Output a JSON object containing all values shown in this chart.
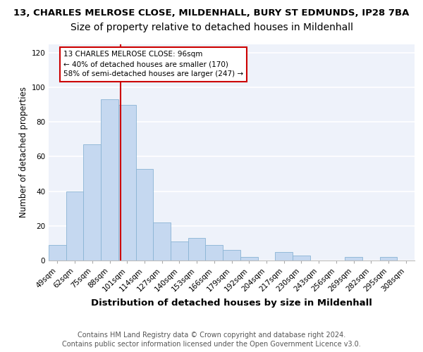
{
  "title1": "13, CHARLES MELROSE CLOSE, MILDENHALL, BURY ST EDMUNDS, IP28 7BA",
  "title2": "Size of property relative to detached houses in Mildenhall",
  "xlabel": "Distribution of detached houses by size in Mildenhall",
  "ylabel": "Number of detached properties",
  "categories": [
    "49sqm",
    "62sqm",
    "75sqm",
    "88sqm",
    "101sqm",
    "114sqm",
    "127sqm",
    "140sqm",
    "153sqm",
    "166sqm",
    "179sqm",
    "192sqm",
    "204sqm",
    "217sqm",
    "230sqm",
    "243sqm",
    "256sqm",
    "269sqm",
    "282sqm",
    "295sqm",
    "308sqm"
  ],
  "values": [
    9,
    40,
    67,
    93,
    90,
    53,
    22,
    11,
    13,
    9,
    6,
    2,
    0,
    5,
    3,
    0,
    0,
    2,
    0,
    2,
    0
  ],
  "bar_color": "#c5d8f0",
  "bar_edge_color": "#8ab4d4",
  "annotation_text": "13 CHARLES MELROSE CLOSE: 96sqm\n← 40% of detached houses are smaller (170)\n58% of semi-detached houses are larger (247) →",
  "annotation_box_facecolor": "#ffffff",
  "annotation_box_edgecolor": "#cc0000",
  "vline_color": "#cc0000",
  "ylim": [
    0,
    125
  ],
  "yticks": [
    0,
    20,
    40,
    60,
    80,
    100,
    120
  ],
  "footer1": "Contains HM Land Registry data © Crown copyright and database right 2024.",
  "footer2": "Contains public sector information licensed under the Open Government Licence v3.0.",
  "background_color": "#eef2fa",
  "grid_color": "#ffffff",
  "title1_fontsize": 9.5,
  "title2_fontsize": 10,
  "xlabel_fontsize": 9.5,
  "ylabel_fontsize": 8.5,
  "tick_fontsize": 7.5,
  "annotation_fontsize": 7.5,
  "footer_fontsize": 7.0
}
